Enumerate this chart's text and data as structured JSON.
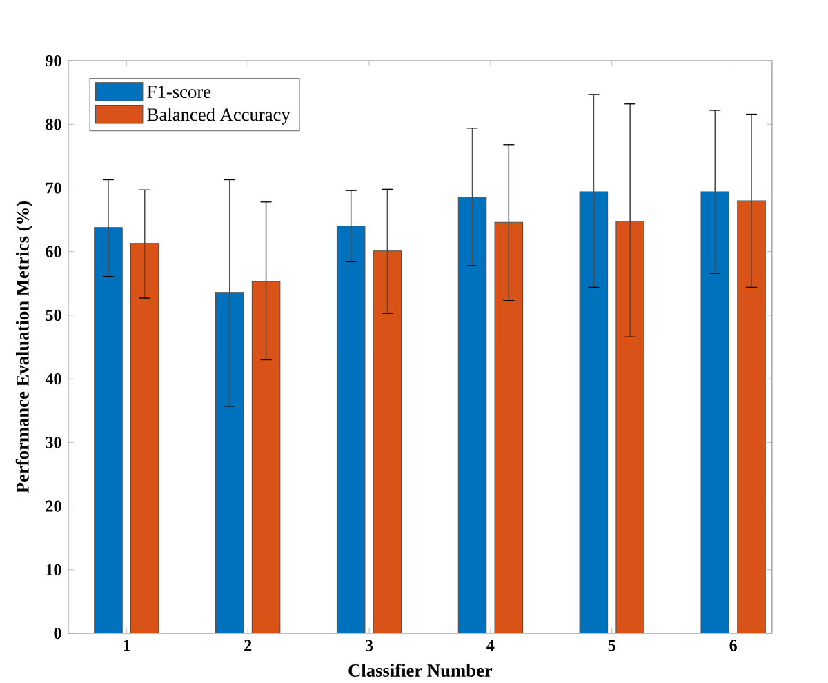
{
  "chart_data": {
    "type": "bar",
    "xlabel": "Classifier Number",
    "ylabel": "Performance Evaluation Metrics (%)",
    "categories": [
      "1",
      "2",
      "3",
      "4",
      "5",
      "6"
    ],
    "series": [
      {
        "name": "F1-score",
        "color": "#0072bd",
        "values": [
          63.8,
          53.6,
          64.0,
          68.5,
          69.4,
          69.4
        ],
        "errors": [
          [
            56.1,
            71.3
          ],
          [
            35.7,
            71.3
          ],
          [
            58.4,
            69.6
          ],
          [
            57.8,
            79.4
          ],
          [
            54.4,
            84.7
          ],
          [
            56.6,
            82.2
          ]
        ]
      },
      {
        "name": "Balanced Accuracy",
        "color": "#d95319",
        "values": [
          61.3,
          55.3,
          60.1,
          64.6,
          64.8,
          68.0
        ],
        "errors": [
          [
            52.7,
            69.7
          ],
          [
            43.0,
            67.8
          ],
          [
            50.3,
            69.8
          ],
          [
            52.3,
            76.8
          ],
          [
            46.6,
            83.2
          ],
          [
            54.4,
            81.6
          ]
        ]
      }
    ],
    "ylim": [
      0,
      90
    ],
    "yticks": [
      0,
      10,
      20,
      30,
      40,
      50,
      60,
      70,
      80,
      90
    ],
    "grid": false,
    "legend": "top left"
  }
}
